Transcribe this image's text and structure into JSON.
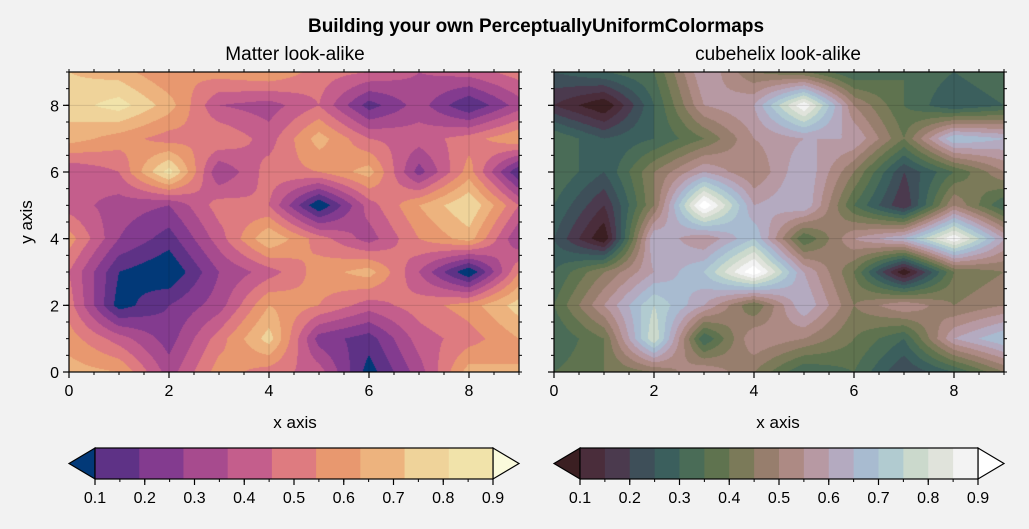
{
  "chart_data": [
    {
      "type": "contourf",
      "suptitle": "Building your own PerceptuallyUniformColormaps",
      "title": "Matter look-alike",
      "xlabel": "x axis",
      "ylabel": "y axis",
      "xlim": [
        0,
        9
      ],
      "ylim": [
        0,
        9
      ],
      "xticks": [
        "0",
        "2",
        "4",
        "6",
        "8"
      ],
      "yticks": [
        "0",
        "2",
        "4",
        "6",
        "8"
      ],
      "x": [
        0,
        1,
        2,
        3,
        4,
        5,
        6,
        7,
        8,
        9
      ],
      "y": [
        0,
        1,
        2,
        3,
        4,
        5,
        6,
        7,
        8,
        9
      ],
      "z": [
        [
          0.75,
          0.7,
          0.35,
          0.65,
          0.55,
          0.45,
          0.05,
          0.35,
          0.75,
          0.7
        ],
        [
          0.65,
          0.45,
          0.25,
          0.55,
          0.85,
          0.25,
          0.15,
          0.45,
          0.55,
          0.7
        ],
        [
          0.55,
          0.05,
          0.2,
          0.35,
          0.7,
          0.6,
          0.45,
          0.55,
          0.65,
          0.85
        ],
        [
          0.5,
          0.1,
          0.0,
          0.3,
          0.45,
          0.65,
          0.75,
          0.4,
          0.0,
          0.6
        ],
        [
          0.65,
          0.3,
          0.15,
          0.45,
          0.8,
          0.55,
          0.35,
          0.6,
          0.75,
          0.3
        ],
        [
          0.45,
          0.35,
          0.3,
          0.55,
          0.5,
          0.0,
          0.45,
          0.7,
          0.9,
          0.5
        ],
        [
          0.4,
          0.5,
          0.95,
          0.3,
          0.55,
          0.6,
          0.75,
          0.25,
          0.65,
          0.1
        ],
        [
          0.75,
          0.65,
          0.55,
          0.6,
          0.45,
          0.75,
          0.5,
          0.45,
          0.55,
          0.7
        ],
        [
          0.85,
          0.95,
          0.75,
          0.4,
          0.35,
          0.5,
          0.15,
          0.35,
          0.1,
          0.35
        ],
        [
          0.8,
          0.75,
          0.6,
          0.65,
          0.7,
          0.55,
          0.5,
          0.4,
          0.45,
          0.55
        ]
      ],
      "levels": [
        0.1,
        0.2,
        0.3,
        0.4,
        0.5,
        0.6,
        0.7,
        0.8,
        0.9
      ],
      "extend": "both",
      "colorbar_ticks": [
        "0.1",
        "0.2",
        "0.3",
        "0.4",
        "0.5",
        "0.6",
        "0.7",
        "0.8",
        "0.9"
      ],
      "colormap": [
        "#023978",
        "#5e3286",
        "#833b8f",
        "#a74b8e",
        "#c45e8c",
        "#de7b80",
        "#e8986f",
        "#edb37e",
        "#efd39a",
        "#f1e3aa",
        "#fafadc"
      ]
    },
    {
      "type": "contourf",
      "title": "cubehelix look-alike",
      "xlabel": "x axis",
      "ylabel": "",
      "xlim": [
        0,
        9
      ],
      "ylim": [
        0,
        9
      ],
      "xticks": [
        "0",
        "2",
        "4",
        "6",
        "8"
      ],
      "yticks": [
        "0",
        "2",
        "4",
        "6",
        "8"
      ],
      "x": [
        0,
        1,
        2,
        3,
        4,
        5,
        6,
        7,
        8,
        9
      ],
      "y": [
        0,
        1,
        2,
        3,
        4,
        5,
        6,
        7,
        8,
        9
      ],
      "z": [
        [
          0.35,
          0.4,
          0.45,
          0.55,
          0.45,
          0.3,
          0.35,
          0.2,
          0.3,
          0.45
        ],
        [
          0.3,
          0.4,
          0.8,
          0.3,
          0.55,
          0.5,
          0.4,
          0.3,
          0.6,
          0.7
        ],
        [
          0.35,
          0.55,
          0.75,
          0.6,
          0.4,
          0.65,
          0.45,
          0.55,
          0.45,
          0.5
        ],
        [
          0.3,
          0.45,
          0.6,
          0.7,
          0.95,
          0.6,
          0.4,
          0.05,
          0.4,
          0.45
        ],
        [
          0.25,
          0.05,
          0.65,
          0.55,
          0.7,
          0.35,
          0.55,
          0.65,
          0.9,
          0.6
        ],
        [
          0.3,
          0.15,
          0.45,
          0.95,
          0.6,
          0.65,
          0.35,
          0.15,
          0.5,
          0.3
        ],
        [
          0.35,
          0.25,
          0.45,
          0.6,
          0.5,
          0.65,
          0.45,
          0.2,
          0.35,
          0.5
        ],
        [
          0.35,
          0.25,
          0.3,
          0.4,
          0.55,
          0.6,
          0.6,
          0.4,
          0.7,
          0.65
        ],
        [
          0.15,
          0.05,
          0.3,
          0.55,
          0.6,
          0.9,
          0.5,
          0.35,
          0.25,
          0.3
        ],
        [
          0.25,
          0.3,
          0.35,
          0.6,
          0.45,
          0.4,
          0.3,
          0.35,
          0.3,
          0.35
        ]
      ],
      "levels": [
        0.1,
        0.15,
        0.2,
        0.25,
        0.3,
        0.35,
        0.4,
        0.45,
        0.5,
        0.55,
        0.6,
        0.65,
        0.7,
        0.75,
        0.8,
        0.85,
        0.9
      ],
      "extend": "both",
      "colorbar_ticks": [
        "0.1",
        "0.2",
        "0.3",
        "0.4",
        "0.5",
        "0.6",
        "0.7",
        "0.8",
        "0.9"
      ],
      "colormap": [
        "#3b1f22",
        "#4a2d3b",
        "#4b3a4e",
        "#3e4f59",
        "#3b5f5d",
        "#4a6c57",
        "#5f734f",
        "#7b7a59",
        "#977e6d",
        "#ad8a84",
        "#b799a3",
        "#b4aac0",
        "#a8bbd0",
        "#b1cbd0",
        "#cbd9cc",
        "#e0e3db",
        "#f3f3f3",
        "#ffffff"
      ]
    }
  ]
}
